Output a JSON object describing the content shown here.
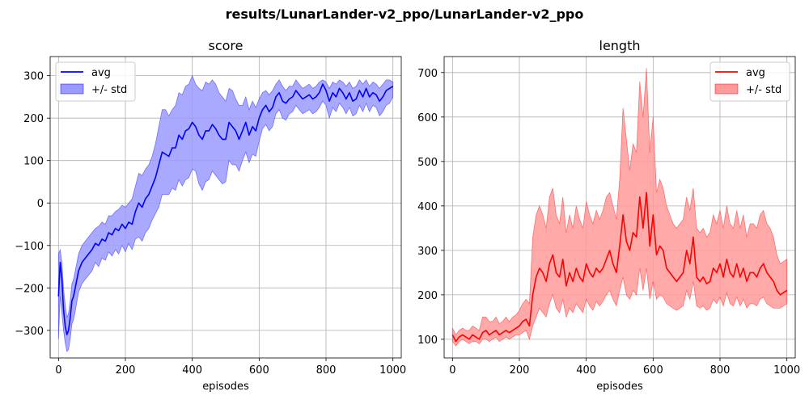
{
  "figure_title": "results/LunarLander-v2_ppo/LunarLander-v2_ppo",
  "chart_data": [
    {
      "type": "line",
      "title": "score",
      "xlabel": "episodes",
      "ylabel": "",
      "xlim": [
        -25,
        1025
      ],
      "ylim": [
        -365,
        345
      ],
      "xticks": [
        0,
        200,
        400,
        600,
        800,
        1000
      ],
      "yticks": [
        -300,
        -200,
        -100,
        0,
        100,
        200,
        300
      ],
      "grid": true,
      "legend_position": "top-left",
      "color": "#0000ff",
      "series": [
        {
          "name": "avg",
          "x": [
            0,
            5,
            10,
            15,
            20,
            25,
            30,
            35,
            40,
            45,
            50,
            60,
            70,
            80,
            90,
            100,
            110,
            120,
            130,
            140,
            150,
            160,
            170,
            180,
            190,
            200,
            210,
            220,
            230,
            240,
            250,
            260,
            270,
            280,
            290,
            300,
            310,
            320,
            330,
            340,
            350,
            360,
            370,
            380,
            390,
            400,
            410,
            420,
            430,
            440,
            450,
            460,
            470,
            480,
            490,
            500,
            510,
            520,
            530,
            540,
            550,
            560,
            570,
            580,
            590,
            600,
            610,
            620,
            630,
            640,
            650,
            660,
            670,
            680,
            690,
            700,
            710,
            720,
            730,
            740,
            750,
            760,
            770,
            780,
            790,
            800,
            810,
            820,
            830,
            840,
            850,
            860,
            870,
            880,
            890,
            900,
            910,
            920,
            930,
            940,
            950,
            960,
            970,
            980,
            990,
            1000
          ],
          "y": [
            -220,
            -140,
            -180,
            -250,
            -290,
            -310,
            -300,
            -270,
            -230,
            -220,
            -200,
            -160,
            -140,
            -130,
            -120,
            -110,
            -95,
            -100,
            -85,
            -90,
            -70,
            -75,
            -60,
            -65,
            -50,
            -60,
            -45,
            -50,
            -20,
            0,
            -10,
            10,
            20,
            40,
            60,
            90,
            120,
            115,
            110,
            130,
            130,
            160,
            150,
            170,
            175,
            190,
            180,
            160,
            150,
            170,
            170,
            185,
            175,
            160,
            150,
            150,
            190,
            180,
            170,
            150,
            170,
            190,
            160,
            180,
            170,
            200,
            220,
            230,
            215,
            225,
            250,
            260,
            240,
            235,
            245,
            250,
            265,
            255,
            245,
            250,
            255,
            245,
            250,
            260,
            280,
            265,
            240,
            260,
            250,
            270,
            260,
            245,
            260,
            240,
            245,
            265,
            250,
            270,
            250,
            260,
            255,
            240,
            250,
            265,
            270,
            275
          ]
        }
      ],
      "std_band": {
        "name": "+/- std",
        "upper": [
          -120,
          -110,
          -140,
          -200,
          -240,
          -270,
          -260,
          -230,
          -190,
          -180,
          -160,
          -120,
          -100,
          -90,
          -80,
          -70,
          -60,
          -55,
          -45,
          -50,
          -30,
          -30,
          -20,
          -15,
          -5,
          -10,
          0,
          10,
          40,
          70,
          65,
          80,
          90,
          110,
          140,
          180,
          220,
          220,
          205,
          220,
          230,
          260,
          255,
          275,
          280,
          300,
          280,
          270,
          265,
          285,
          280,
          290,
          280,
          260,
          250,
          240,
          270,
          265,
          245,
          230,
          230,
          250,
          220,
          240,
          225,
          245,
          260,
          265,
          255,
          265,
          280,
          290,
          275,
          265,
          275,
          275,
          290,
          280,
          270,
          275,
          280,
          270,
          275,
          285,
          290,
          285,
          270,
          285,
          280,
          290,
          285,
          275,
          285,
          270,
          275,
          290,
          280,
          290,
          275,
          285,
          280,
          270,
          280,
          290,
          290,
          285
        ],
        "lower": [
          -320,
          -220,
          -260,
          -300,
          -330,
          -350,
          -345,
          -320,
          -285,
          -275,
          -255,
          -210,
          -190,
          -180,
          -170,
          -160,
          -140,
          -150,
          -130,
          -135,
          -115,
          -125,
          -110,
          -120,
          -100,
          -115,
          -95,
          -110,
          -85,
          -80,
          -90,
          -70,
          -60,
          -40,
          -25,
          -10,
          20,
          20,
          20,
          35,
          30,
          55,
          40,
          55,
          60,
          80,
          75,
          45,
          30,
          50,
          55,
          75,
          65,
          55,
          45,
          50,
          100,
          90,
          90,
          75,
          100,
          120,
          95,
          115,
          110,
          145,
          175,
          185,
          170,
          180,
          210,
          220,
          200,
          195,
          210,
          215,
          230,
          220,
          210,
          215,
          220,
          210,
          215,
          225,
          240,
          230,
          200,
          225,
          215,
          235,
          225,
          210,
          225,
          205,
          210,
          230,
          215,
          235,
          215,
          230,
          225,
          205,
          215,
          230,
          235,
          250
        ]
      }
    },
    {
      "type": "line",
      "title": "length",
      "xlabel": "episodes",
      "ylabel": "",
      "xlim": [
        -25,
        1025
      ],
      "ylim": [
        58,
        736
      ],
      "xticks": [
        0,
        200,
        400,
        600,
        800,
        1000
      ],
      "yticks": [
        100,
        200,
        300,
        400,
        500,
        600,
        700
      ],
      "grid": true,
      "legend_position": "top-right",
      "color": "#ff0000",
      "series": [
        {
          "name": "avg",
          "x": [
            0,
            10,
            20,
            30,
            40,
            50,
            60,
            70,
            80,
            90,
            100,
            110,
            120,
            130,
            140,
            150,
            160,
            170,
            180,
            190,
            200,
            210,
            220,
            230,
            240,
            250,
            260,
            270,
            280,
            290,
            300,
            310,
            320,
            330,
            340,
            350,
            360,
            370,
            380,
            390,
            400,
            410,
            420,
            430,
            440,
            450,
            460,
            470,
            480,
            490,
            500,
            510,
            520,
            530,
            540,
            550,
            560,
            570,
            580,
            590,
            600,
            610,
            620,
            630,
            640,
            650,
            660,
            670,
            680,
            690,
            700,
            710,
            720,
            730,
            740,
            750,
            760,
            770,
            780,
            790,
            800,
            810,
            820,
            830,
            840,
            850,
            860,
            870,
            880,
            890,
            900,
            910,
            920,
            930,
            940,
            950,
            960,
            970,
            980,
            990,
            1000
          ],
          "y": [
            110,
            95,
            105,
            110,
            105,
            100,
            110,
            105,
            100,
            115,
            120,
            110,
            115,
            120,
            110,
            115,
            120,
            115,
            120,
            125,
            130,
            140,
            145,
            130,
            200,
            240,
            260,
            250,
            230,
            270,
            290,
            250,
            240,
            280,
            220,
            250,
            230,
            260,
            240,
            230,
            270,
            250,
            240,
            260,
            250,
            260,
            280,
            300,
            270,
            250,
            310,
            380,
            320,
            300,
            340,
            330,
            420,
            350,
            430,
            310,
            380,
            290,
            310,
            300,
            260,
            250,
            240,
            230,
            240,
            250,
            300,
            270,
            330,
            240,
            230,
            240,
            225,
            230,
            260,
            250,
            270,
            240,
            280,
            250,
            240,
            270,
            240,
            260,
            230,
            250,
            250,
            240,
            260,
            270,
            250,
            240,
            230,
            210,
            200,
            205,
            210
          ]
        }
      ],
      "std_band": {
        "name": "+/- std",
        "upper": [
          125,
          110,
          120,
          125,
          120,
          120,
          130,
          125,
          120,
          150,
          150,
          140,
          140,
          150,
          135,
          140,
          150,
          140,
          150,
          155,
          165,
          180,
          190,
          180,
          330,
          380,
          400,
          380,
          350,
          420,
          440,
          380,
          360,
          420,
          340,
          380,
          350,
          400,
          370,
          350,
          410,
          380,
          360,
          390,
          370,
          390,
          420,
          430,
          400,
          370,
          460,
          620,
          550,
          480,
          540,
          520,
          680,
          600,
          710,
          520,
          600,
          430,
          460,
          440,
          400,
          380,
          360,
          350,
          360,
          370,
          420,
          390,
          440,
          350,
          340,
          350,
          330,
          340,
          380,
          360,
          390,
          350,
          400,
          360,
          350,
          390,
          350,
          380,
          330,
          360,
          360,
          350,
          380,
          390,
          360,
          350,
          330,
          290,
          270,
          275,
          280
        ],
        "lower": [
          95,
          85,
          95,
          100,
          95,
          90,
          95,
          95,
          90,
          100,
          100,
          95,
          100,
          105,
          95,
          100,
          105,
          100,
          105,
          110,
          110,
          115,
          120,
          100,
          130,
          150,
          170,
          160,
          150,
          180,
          200,
          170,
          160,
          190,
          150,
          170,
          160,
          180,
          170,
          160,
          190,
          175,
          165,
          185,
          175,
          185,
          200,
          210,
          190,
          175,
          210,
          240,
          200,
          190,
          210,
          200,
          260,
          210,
          260,
          190,
          230,
          190,
          200,
          195,
          180,
          175,
          170,
          165,
          170,
          175,
          210,
          190,
          230,
          175,
          170,
          175,
          165,
          170,
          190,
          180,
          195,
          175,
          205,
          180,
          175,
          195,
          175,
          190,
          170,
          180,
          180,
          175,
          190,
          195,
          180,
          175,
          170,
          170,
          170,
          175,
          180
        ]
      }
    }
  ]
}
